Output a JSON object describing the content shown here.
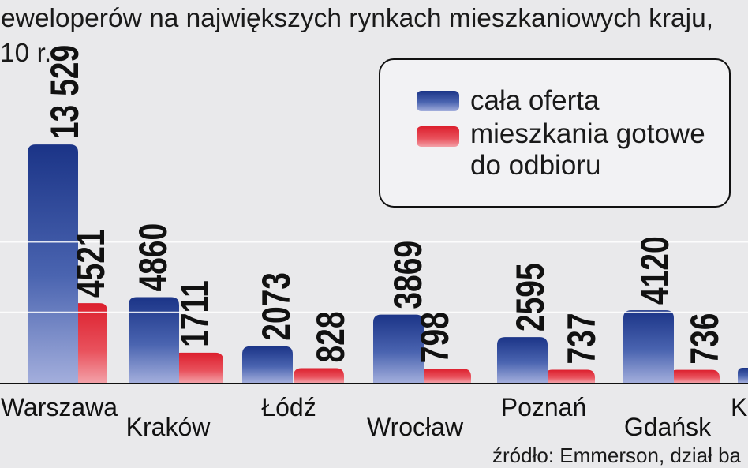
{
  "chart_data": {
    "type": "bar",
    "title_lines": [
      "eweloperów na największych rynkach mieszkaniowych kraju,",
      "10 r."
    ],
    "categories": [
      "Warszawa",
      "Kraków",
      "Łódź",
      "Wrocław",
      "Poznań",
      "Gdańsk",
      "K"
    ],
    "series": [
      {
        "name_lines": [
          "cała oferta"
        ],
        "color": "#2a4699",
        "values": [
          13529,
          4860,
          2073,
          3869,
          2595,
          4120,
          850
        ],
        "labels": [
          "13 529",
          "4860",
          "2073",
          "3869",
          "2595",
          "4120",
          null
        ]
      },
      {
        "name_lines": [
          "mieszkania gotowe",
          "do odbioru"
        ],
        "color": "#e1323f",
        "values": [
          4521,
          1711,
          828,
          798,
          737,
          736,
          null
        ],
        "labels": [
          "4521",
          "1711",
          "828",
          "798",
          "737",
          "736",
          null
        ]
      }
    ],
    "ylim": [
      0,
      16000
    ],
    "grid": true,
    "gridlines": [
      4000,
      8000
    ],
    "legend": "top-right",
    "source": "źródło: Emmerson, dział ba"
  },
  "colors": {
    "background": "#e9e9eb",
    "legend_background": "#f2f2f4",
    "text": "#111111",
    "gridline": "#ffffff"
  }
}
